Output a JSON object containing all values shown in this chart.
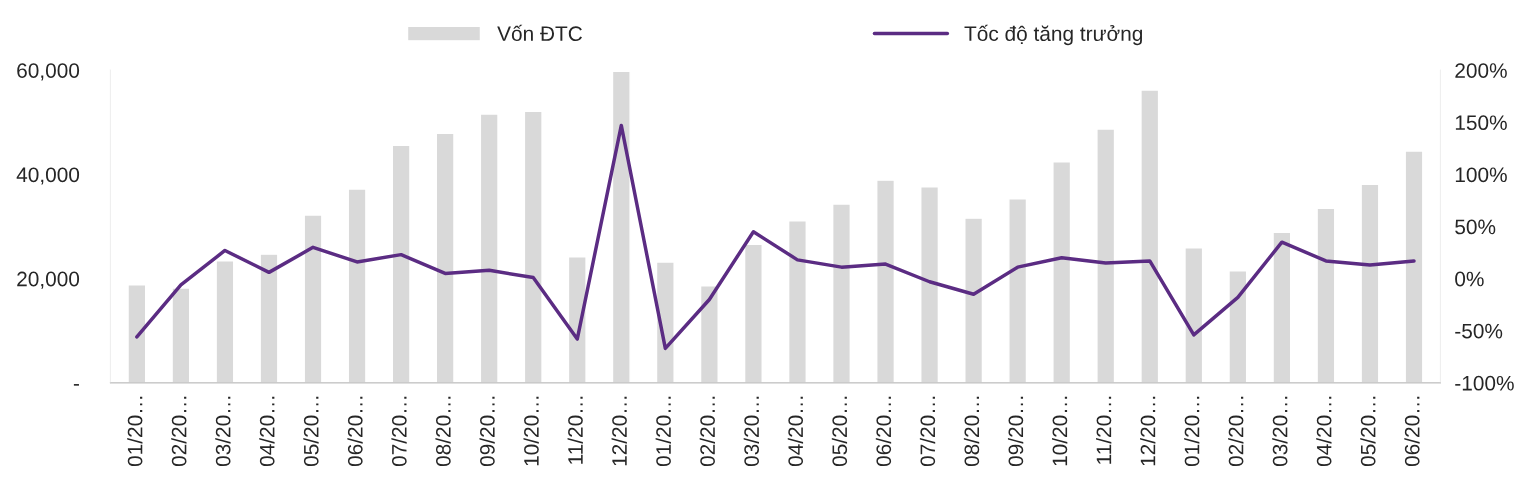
{
  "chart_data": {
    "type": "bar",
    "categories": [
      "01/20…",
      "02/20…",
      "03/20…",
      "04/20…",
      "05/20…",
      "06/20…",
      "07/20…",
      "08/20…",
      "09/20…",
      "10/20…",
      "11/20…",
      "12/20…",
      "01/20…",
      "02/20…",
      "03/20…",
      "04/20…",
      "05/20…",
      "06/20…",
      "07/20…",
      "08/20…",
      "09/20…",
      "10/20…",
      "11/20…",
      "12/20…",
      "01/20…",
      "02/20…",
      "03/20…",
      "04/20…",
      "05/20…",
      "06/20…"
    ],
    "series": [
      {
        "name": "Vốn ĐTC",
        "color": "#d9d9d9",
        "values": [
          18800,
          18200,
          23400,
          24700,
          32200,
          37200,
          45600,
          47900,
          51600,
          52100,
          24200,
          59800,
          23200,
          18600,
          26600,
          31100,
          34300,
          38900,
          37600,
          31600,
          35300,
          42400,
          48700,
          56200,
          25900,
          21500,
          28900,
          33500,
          38100,
          44500
        ]
      },
      {
        "name": "Tốc độ tăng trưởng",
        "type": "line",
        "axis": "y2",
        "color": "#5b2c83",
        "values": [
          -56,
          -6,
          27,
          6,
          30,
          16,
          23,
          5,
          8,
          1,
          -58,
          147,
          -67,
          -20,
          45,
          18,
          11,
          14,
          -3,
          -15,
          11,
          20,
          15,
          17,
          -54,
          -18,
          35,
          17,
          13,
          17
        ]
      }
    ],
    "ylim": [
      0,
      60000
    ],
    "yticks": [
      {
        "value": 0,
        "label": "-"
      },
      {
        "value": 20000,
        "label": "20,000"
      },
      {
        "value": 40000,
        "label": "40,000"
      },
      {
        "value": 60000,
        "label": "60,000"
      }
    ],
    "y2lim": [
      -100,
      200
    ],
    "y2ticks": [
      {
        "value": -100,
        "label": "-100%"
      },
      {
        "value": -50,
        "label": "-50%"
      },
      {
        "value": 0,
        "label": "0%"
      },
      {
        "value": 50,
        "label": "50%"
      },
      {
        "value": 100,
        "label": "100%"
      },
      {
        "value": 150,
        "label": "150%"
      },
      {
        "value": 200,
        "label": "200%"
      }
    ],
    "legend": "top",
    "grid": false,
    "line_style": "solid",
    "marker": "none"
  }
}
